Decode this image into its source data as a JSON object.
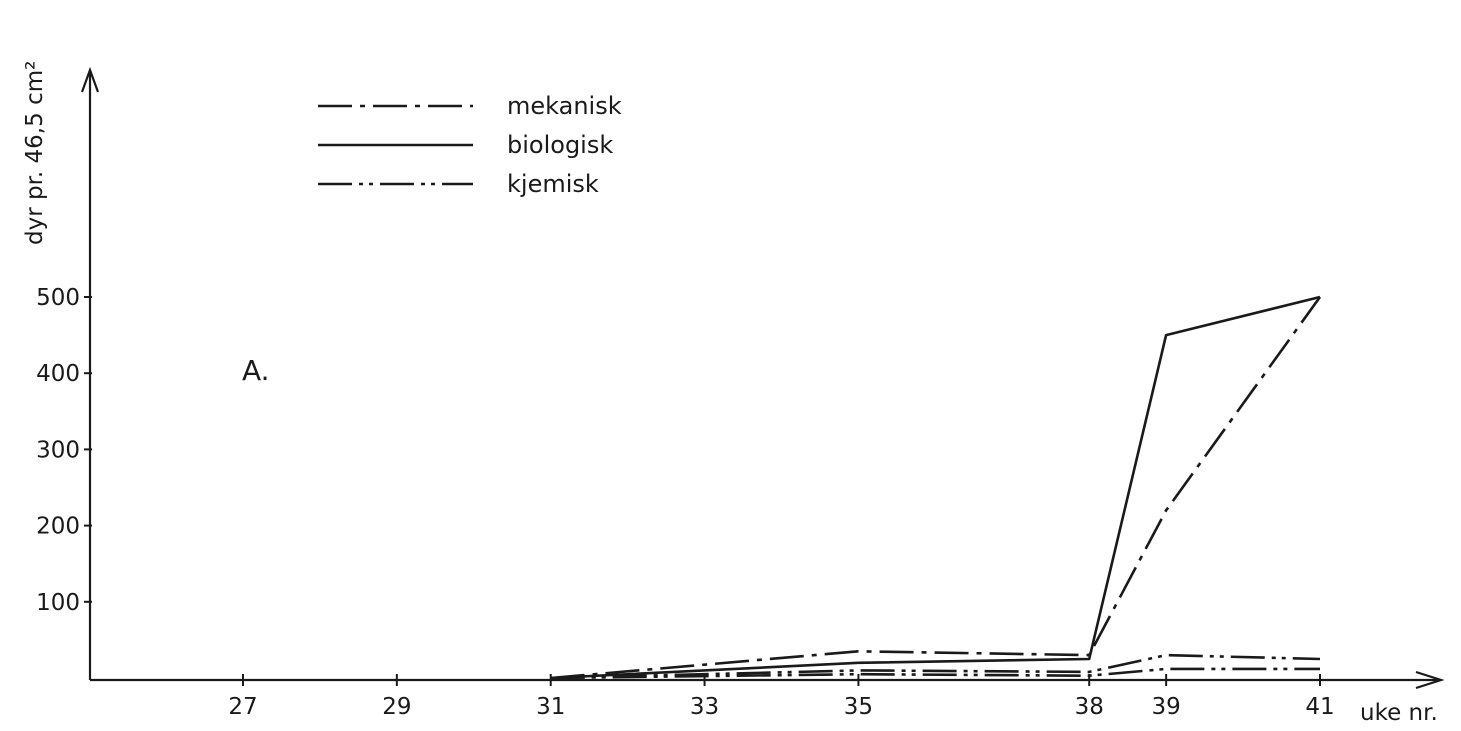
{
  "chart_data": {
    "type": "line",
    "panel_label": "A.",
    "ylabel": "dyr pr. 46,5 cm²",
    "xlabel": "uke nr.",
    "x_ticks": [
      27,
      29,
      31,
      33,
      35,
      38,
      39,
      41
    ],
    "x_tick_labels": [
      "27",
      "29",
      "31",
      "33",
      "35",
      "38",
      "39",
      "41"
    ],
    "y_ticks": [
      100,
      200,
      300,
      400,
      500
    ],
    "y_tick_labels": [
      "100",
      "200",
      "300",
      "400",
      "500"
    ],
    "xlim": [
      25,
      43
    ],
    "ylim": [
      0,
      500
    ],
    "grid": false,
    "legend_position": "top-left",
    "series": [
      {
        "name": "mekanisk",
        "line_style": "dash-dot",
        "x": [
          31,
          35,
          38,
          39,
          41
        ],
        "y": [
          0,
          35,
          30,
          220,
          500
        ]
      },
      {
        "name": "biologisk",
        "line_style": "solid",
        "x": [
          31,
          35,
          38,
          39,
          41
        ],
        "y": [
          0,
          20,
          25,
          450,
          500
        ]
      },
      {
        "name": "kjemisk",
        "line_style": "dash-dot-dot",
        "x": [
          31,
          35,
          38,
          39,
          41
        ],
        "y": [
          0,
          5,
          3,
          12,
          12
        ]
      }
    ],
    "extra_series": [
      {
        "line_style": "dash-dot-dot",
        "x": [
          31,
          35,
          38,
          39,
          41
        ],
        "y": [
          0,
          10,
          8,
          30,
          25
        ]
      }
    ]
  }
}
